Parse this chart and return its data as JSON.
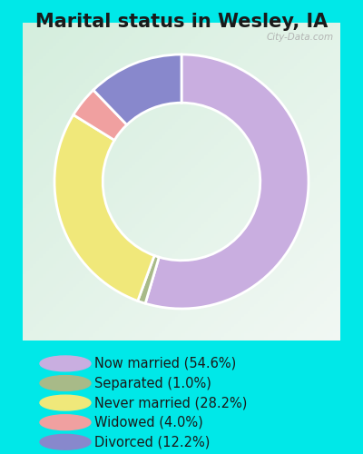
{
  "title": "Marital status in Wesley, IA",
  "slices": [
    54.6,
    1.0,
    28.2,
    4.0,
    12.2
  ],
  "labels": [
    "Now married (54.6%)",
    "Separated (1.0%)",
    "Never married (28.2%)",
    "Widowed (4.0%)",
    "Divorced (12.2%)"
  ],
  "colors": [
    "#c9aee0",
    "#a8ba88",
    "#f0e87a",
    "#f0a0a0",
    "#8888cc"
  ],
  "bg_outer": "#00e8e8",
  "bg_chart_color1": "#d4eedd",
  "bg_chart_color2": "#eaf5ee",
  "bg_chart_color3": "#f0f8f4",
  "watermark": "City-Data.com",
  "title_fontsize": 15,
  "legend_fontsize": 10.5,
  "donut_width": 0.38
}
